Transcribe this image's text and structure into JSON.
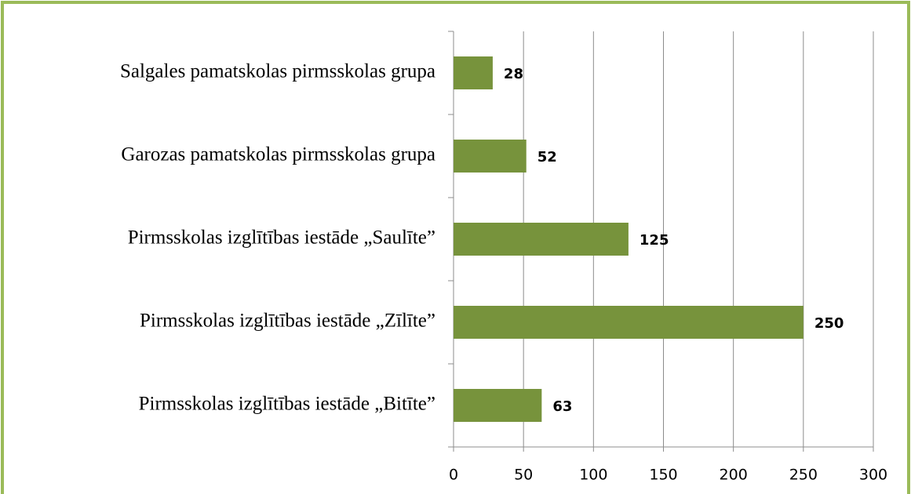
{
  "chart_data": {
    "type": "bar",
    "orientation": "horizontal",
    "categories": [
      "Salgales pamatskolas pirmsskolas grupa",
      "Garozas pamatskolas pirmsskolas grupa",
      "Pirmsskolas izglītības iestāde „Saulīte”",
      "Pirmsskolas izglītības iestāde „Zīlīte”",
      "Pirmsskolas izglītības iestāde „Bitīte”"
    ],
    "values": [
      28,
      52,
      125,
      250,
      63
    ],
    "color": "#77933c",
    "xlim": [
      0,
      300
    ],
    "xticks": [
      0,
      50,
      100,
      150,
      200,
      250,
      300
    ],
    "grid": true
  }
}
